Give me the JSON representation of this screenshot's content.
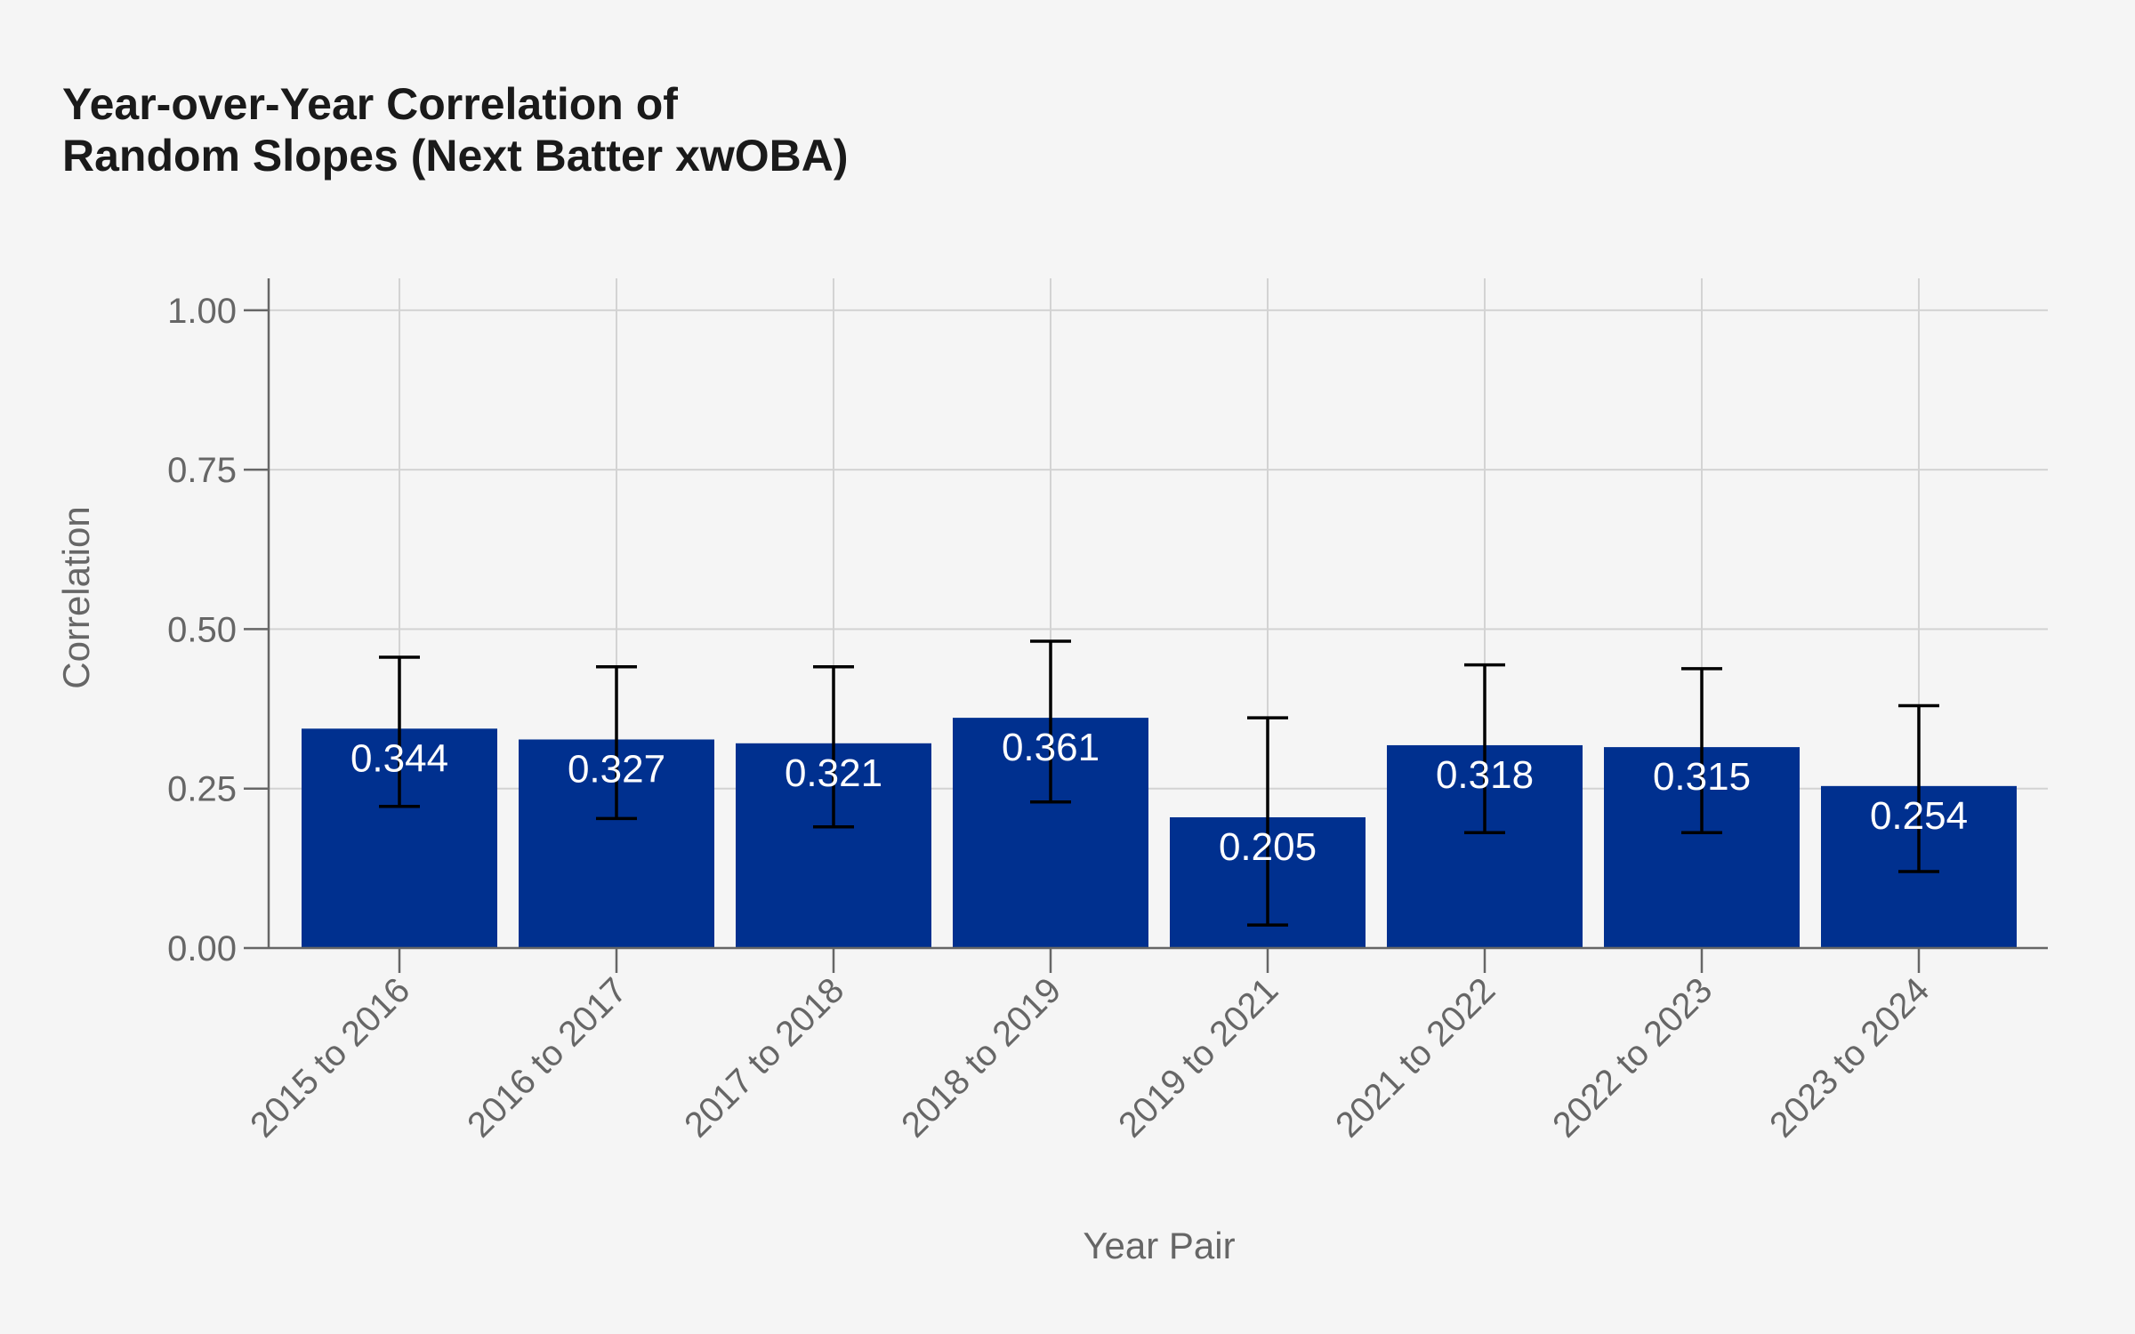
{
  "chart_data": {
    "type": "bar",
    "title_lines": [
      "Year-over-Year Correlation of",
      "Random Slopes (Next Batter xwOBA)"
    ],
    "xlabel": "Year Pair",
    "ylabel": "Correlation",
    "categories": [
      "2015 to 2016",
      "2016 to 2017",
      "2017 to 2018",
      "2018 to 2019",
      "2019 to 2021",
      "2021 to 2022",
      "2022 to 2023",
      "2023 to 2024"
    ],
    "values": [
      0.344,
      0.327,
      0.321,
      0.361,
      0.205,
      0.318,
      0.315,
      0.254
    ],
    "data_labels": [
      "0.344",
      "0.327",
      "0.321",
      "0.361",
      "0.205",
      "0.318",
      "0.315",
      "0.254"
    ],
    "error_low": [
      0.222,
      0.203,
      0.19,
      0.229,
      0.036,
      0.181,
      0.181,
      0.12
    ],
    "error_high": [
      0.456,
      0.441,
      0.441,
      0.481,
      0.361,
      0.444,
      0.438,
      0.38
    ],
    "ylim": [
      0,
      1.05
    ],
    "yticks": [
      0,
      0.25,
      0.5,
      0.75,
      1.0
    ],
    "ytick_labels": [
      "0.00",
      "0.25",
      "0.50",
      "0.75",
      "1.00"
    ],
    "grid": true,
    "legend": "none",
    "bar_color": "#00308f",
    "errorbar_color": "#000000",
    "label_color": "#ffffff",
    "background": "#f5f5f5",
    "grid_color": "#d3d3d3",
    "axis_text_color": "#666666"
  }
}
